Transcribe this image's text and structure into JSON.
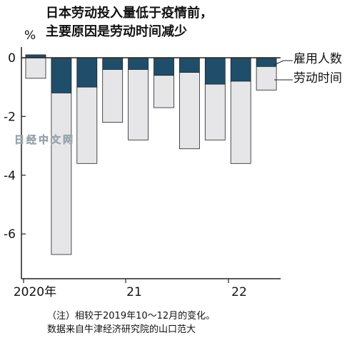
{
  "title": {
    "line1": "日本劳动投入量低于疫情前，",
    "line2": "主要原因是劳动时间减少"
  },
  "unit": "%",
  "note": {
    "line1": "（注）相较于2019年10～12月的变化。",
    "line2": "数据来自牛津经济研究院的山口范大"
  },
  "watermark": "日经中文网",
  "colors": {
    "employment": "#1f4e6a",
    "hours": "#e6e6e8",
    "axis": "#222222"
  },
  "chart_data": {
    "type": "bar",
    "stacked": true,
    "categories": [
      "2020 Q1",
      "2020 Q2",
      "2020 Q3",
      "2020 Q4",
      "2021 Q1",
      "2021 Q2",
      "2021 Q3",
      "2021 Q4",
      "2022 Q1",
      "2022 Q2"
    ],
    "series": [
      {
        "name": "雇用人数",
        "values": [
          0.1,
          -1.2,
          -1.0,
          -0.4,
          -0.4,
          -0.6,
          -0.5,
          -0.9,
          -0.8,
          -0.3
        ]
      },
      {
        "name": "劳动时间",
        "values": [
          -0.7,
          -5.5,
          -2.6,
          -1.8,
          -2.4,
          -1.1,
          -2.6,
          -1.9,
          -2.8,
          -0.8
        ]
      }
    ],
    "ylim": [
      -7.5,
      0.3
    ],
    "yticks": [
      "0",
      "-2",
      "-4",
      "-6"
    ],
    "ytick_values": [
      0,
      -2,
      -4,
      -6
    ],
    "xtick_labels": [
      "2020年",
      "21",
      "22"
    ],
    "legend_placement": "right"
  }
}
